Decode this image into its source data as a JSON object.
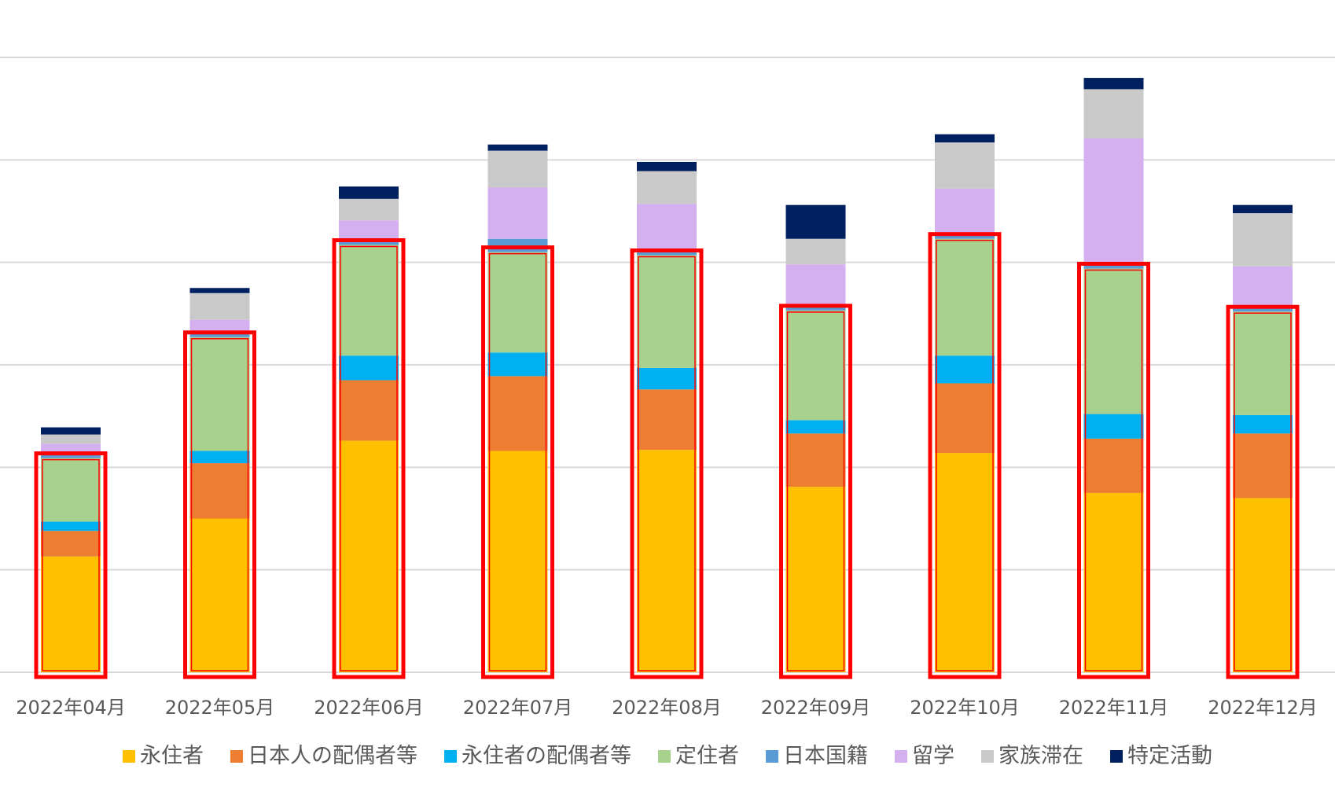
{
  "chart_data": {
    "type": "bar",
    "stacked": true,
    "title": "",
    "xlabel": "",
    "ylabel": "",
    "ylim": [
      0,
      6
    ],
    "y_gridlines": [
      0,
      1,
      2,
      3,
      4,
      5,
      6
    ],
    "y_tick_labels_visible": false,
    "grid": true,
    "legend_position": "bottom",
    "categories": [
      "2022年04月",
      "2022年05月",
      "2022年06月",
      "2022年07月",
      "2022年08月",
      "2022年09月",
      "2022年10月",
      "2022年11月",
      "2022年12月"
    ],
    "series": [
      {
        "name": "永住者",
        "color": "#FFC000",
        "values": [
          1.13,
          1.5,
          2.26,
          2.16,
          2.17,
          1.81,
          2.14,
          1.75,
          1.7
        ]
      },
      {
        "name": "日本人の配偶者等",
        "color": "#ED7D31",
        "values": [
          0.25,
          0.54,
          0.59,
          0.73,
          0.59,
          0.52,
          0.68,
          0.53,
          0.63
        ]
      },
      {
        "name": "永住者の配偶者等",
        "color": "#00B0F0",
        "values": [
          0.09,
          0.12,
          0.24,
          0.23,
          0.21,
          0.13,
          0.27,
          0.24,
          0.18
        ]
      },
      {
        "name": "定住者",
        "color": "#A9D18E",
        "values": [
          0.62,
          1.11,
          1.08,
          0.98,
          1.1,
          1.07,
          1.14,
          1.42,
          1.01
        ]
      },
      {
        "name": "日本国籍",
        "color": "#5B9BD5",
        "values": [
          0.03,
          0.03,
          0.04,
          0.13,
          0.05,
          0.04,
          0.05,
          0.06,
          0.05
        ]
      },
      {
        "name": "留学",
        "color": "#D5B0F0",
        "values": [
          0.11,
          0.14,
          0.2,
          0.5,
          0.45,
          0.41,
          0.44,
          1.21,
          0.39
        ]
      },
      {
        "name": "家族滞在",
        "color": "#C9C9C9",
        "values": [
          0.09,
          0.26,
          0.21,
          0.36,
          0.32,
          0.25,
          0.45,
          0.48,
          0.52
        ]
      },
      {
        "name": "特定活動",
        "color": "#002060",
        "values": [
          0.07,
          0.05,
          0.12,
          0.06,
          0.09,
          0.33,
          0.08,
          0.11,
          0.08
        ]
      }
    ],
    "highlight": {
      "description_series": [
        "永住者",
        "日本人の配偶者等",
        "永住者の配偶者等",
        "定住者"
      ],
      "color": "#FF0000"
    }
  }
}
